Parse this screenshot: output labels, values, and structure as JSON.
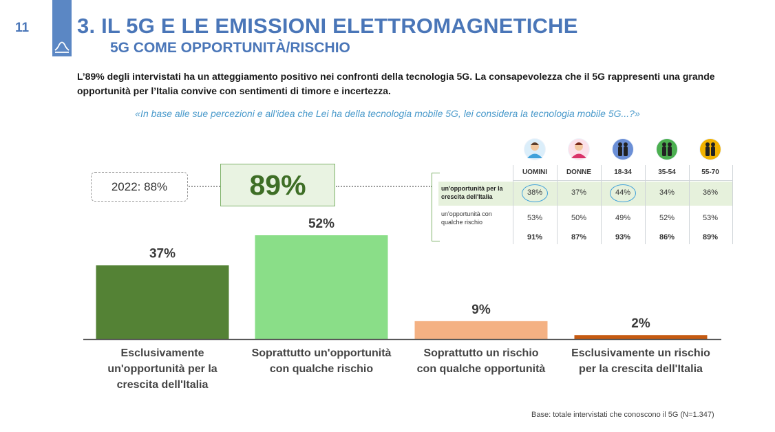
{
  "header": {
    "page_number": "11",
    "title": "3. IL 5G E LE EMISSIONI ELETTROMAGNETICHE",
    "subtitle": "5G COME OPPORTUNITÀ/RISCHIO"
  },
  "lead_text": "L’89% degli intervistati ha un atteggiamento positivo nei confronti della tecnologia 5G. La consapevolezza che il 5G rappresenti una grande opportunità per l’Italia convive con sentimenti di timore e incertezza.",
  "question": "«In base alle sue percezioni e all'idea che Lei ha della tecnologia mobile 5G, lei considera la tecnologia mobile 5G...?»",
  "summary": {
    "previous": "2022: 88%",
    "total": "89%"
  },
  "chart_data": {
    "type": "bar",
    "categories": [
      "Esclusivamente un'opportunità per la crescita dell'Italia",
      "Soprattutto un'opportunità con qualche rischio",
      "Soprattutto un rischio con qualche opportunità",
      "Esclusivamente un rischio per la crescita dell'Italia"
    ],
    "category_lines": [
      [
        "Esclusivamente",
        "un'opportunità per la",
        "crescita dell'Italia"
      ],
      [
        "Soprattutto un'opportunità",
        "con qualche rischio"
      ],
      [
        "Soprattutto un rischio",
        "con qualche opportunità"
      ],
      [
        "Esclusivamente un rischio",
        "per la crescita dell'Italia"
      ]
    ],
    "values": [
      37,
      52,
      9,
      2
    ],
    "data_labels": [
      "37%",
      "52%",
      "9%",
      "2%"
    ],
    "colors": [
      "#548235",
      "#8ade88",
      "#f4b183",
      "#c55a11"
    ],
    "unit": "%",
    "ylim": [
      0,
      55
    ],
    "grid": false,
    "legend": "none"
  },
  "breakdown": {
    "columns": [
      "UOMINI",
      "DONNE",
      "18-34",
      "35-54",
      "55-70"
    ],
    "icons": [
      {
        "name": "man-icon",
        "color": "#3fa1da"
      },
      {
        "name": "woman-icon",
        "color": "#d9336a"
      },
      {
        "name": "young-adults-icon",
        "color": "#6b8fd6"
      },
      {
        "name": "middle-age-icon",
        "color": "#4caf50"
      },
      {
        "name": "seniors-icon",
        "color": "#f2b200"
      }
    ],
    "rows": [
      {
        "label": "un'opportunità per la crescita dell'Italia",
        "values": [
          "38%",
          "37%",
          "44%",
          "34%",
          "36%"
        ],
        "highlight": true
      },
      {
        "label": "un'opportunità con qualche rischio",
        "values": [
          "53%",
          "50%",
          "49%",
          "52%",
          "53%"
        ],
        "highlight": false
      },
      {
        "label": "",
        "values": [
          "91%",
          "87%",
          "93%",
          "86%",
          "89%"
        ],
        "highlight": false
      }
    ],
    "circled_cells": [
      "UOMINI",
      "18-34"
    ]
  },
  "footnote": "Base: totale intervistati che conoscono il 5G (N=1.347)"
}
